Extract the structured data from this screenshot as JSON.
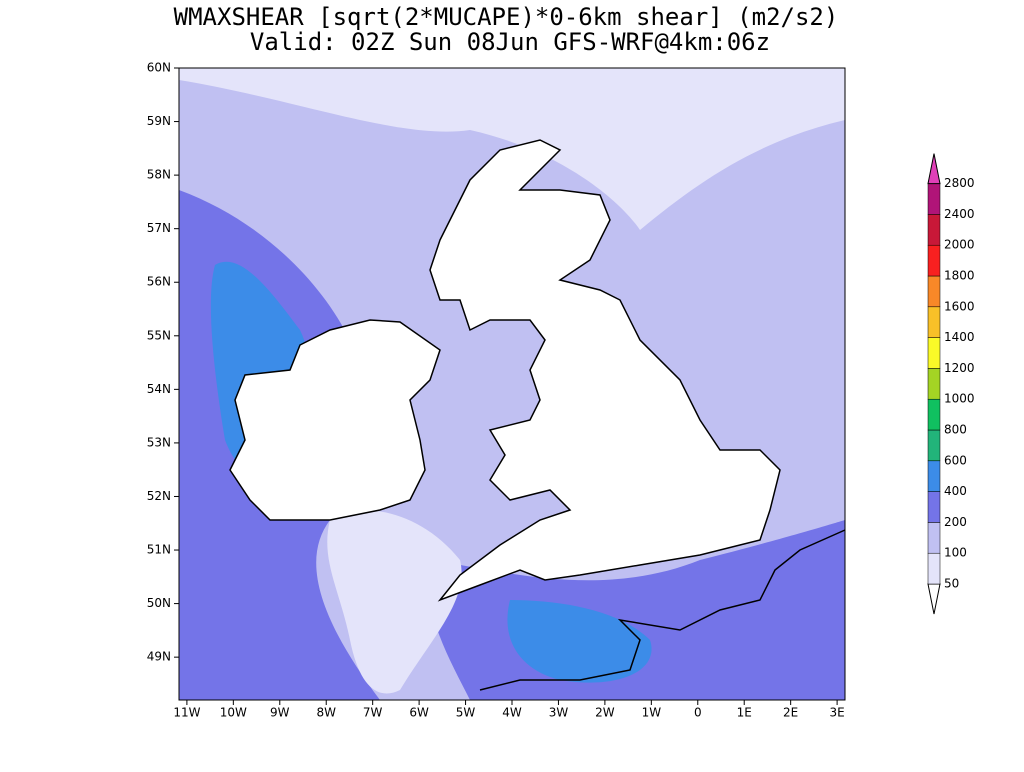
{
  "header": {
    "title": "WMAXSHEAR [sqrt(2*MUCAPE)*0-6km shear] (m2/s2)",
    "subtitle": "Valid: 02Z Sun 08Jun GFS-WRF@4km:06z"
  },
  "map": {
    "xlim": [
      -11.17,
      3.17
    ],
    "ylim": [
      48.2,
      60
    ],
    "xticks": [
      {
        "value": -11,
        "label": "11W"
      },
      {
        "value": -10,
        "label": "10W"
      },
      {
        "value": -9,
        "label": "9W"
      },
      {
        "value": -8,
        "label": "8W"
      },
      {
        "value": -7,
        "label": "7W"
      },
      {
        "value": -6,
        "label": "6W"
      },
      {
        "value": -5,
        "label": "5W"
      },
      {
        "value": -4,
        "label": "4W"
      },
      {
        "value": -3,
        "label": "3W"
      },
      {
        "value": -2,
        "label": "2W"
      },
      {
        "value": -1,
        "label": "1W"
      },
      0,
      {
        "value": 1,
        "label": "1E"
      },
      {
        "value": 2,
        "label": "2E"
      },
      {
        "value": 3,
        "label": "3E"
      }
    ],
    "yticks": [
      {
        "value": 49,
        "label": "49N"
      },
      {
        "value": 50,
        "label": "50N"
      },
      {
        "value": 51,
        "label": "51N"
      },
      {
        "value": 52,
        "label": "52N"
      },
      {
        "value": 53,
        "label": "53N"
      },
      {
        "value": 54,
        "label": "54N"
      },
      {
        "value": 55,
        "label": "55N"
      },
      {
        "value": 56,
        "label": "56N"
      },
      {
        "value": 57,
        "label": "57N"
      },
      {
        "value": 58,
        "label": "58N"
      },
      {
        "value": 59,
        "label": "59N"
      },
      {
        "value": 60,
        "label": "60N"
      }
    ]
  },
  "colorbar": {
    "levels": [
      50,
      100,
      200,
      400,
      600,
      800,
      1000,
      1200,
      1400,
      1600,
      1800,
      2000,
      2400,
      2800
    ],
    "colors": [
      "#ffffff",
      "#e4e4fa",
      "#c0c0f2",
      "#7474e8",
      "#3c8ce8",
      "#22b47a",
      "#10c060",
      "#a4d424",
      "#fafa28",
      "#f8c028",
      "#f88828",
      "#f82020",
      "#c81838",
      "#b01478",
      "#e040b8"
    ]
  }
}
